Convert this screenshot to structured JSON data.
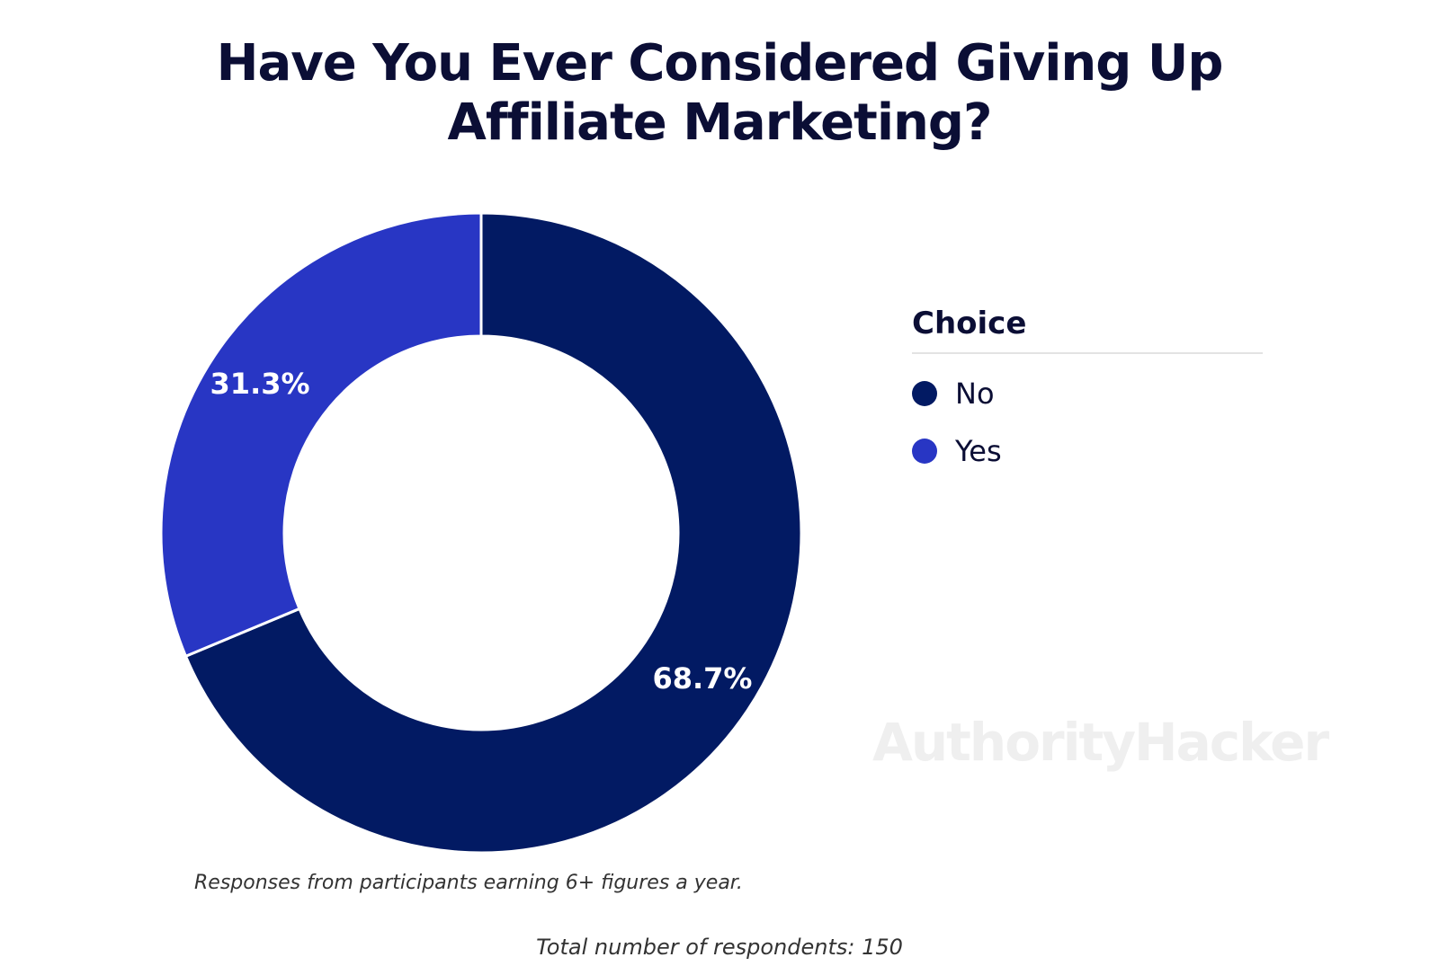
{
  "title_lines": [
    "Have You Ever Considered Giving Up",
    "Affiliate Marketing?"
  ],
  "chart_data": {
    "type": "pie",
    "variant": "donut",
    "title": "Have You Ever Considered Giving Up Affiliate Marketing?",
    "categories": [
      "No",
      "Yes"
    ],
    "values": [
      68.7,
      31.3
    ],
    "labels": [
      "68.7%",
      "31.3%"
    ],
    "colors": [
      "#021a63",
      "#2836c4"
    ],
    "legend_title": "Choice",
    "legend_position": "right"
  },
  "watermark": "AuthorityHacker",
  "note": "Responses from participants earning 6+ figures a year.",
  "total": "Total number of respondents: 150"
}
